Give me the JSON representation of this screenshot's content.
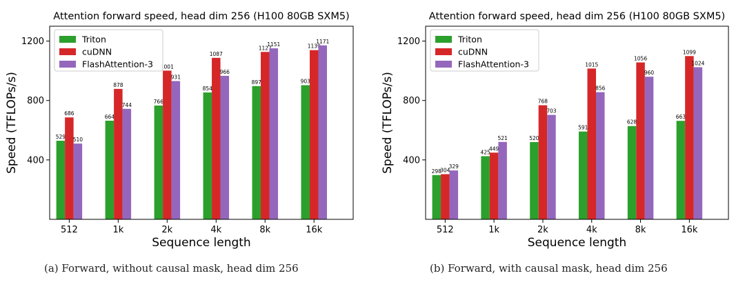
{
  "captions": [
    "(a) Forward, without causal mask, head dim 256",
    "(b) Forward, with causal mask, head dim 256"
  ],
  "colors": {
    "Triton": "#2ca02c",
    "cuDNN": "#d62728",
    "FlashAttention-3": "#9467bd"
  },
  "chart_data": [
    {
      "type": "bar",
      "title": "Attention forward speed, head dim 256 (H100 80GB SXM5)",
      "xlabel": "Sequence length",
      "ylabel": "Speed (TFLOPs/s)",
      "ylim": [
        0,
        1300
      ],
      "yticks": [
        400,
        800,
        1200
      ],
      "legend_position": "top-left",
      "grid": false,
      "categories": [
        "512",
        "1k",
        "2k",
        "4k",
        "8k",
        "16k"
      ],
      "series": [
        {
          "name": "Triton",
          "values": [
            529,
            664,
            766,
            854,
            897,
            903
          ]
        },
        {
          "name": "cuDNN",
          "values": [
            686,
            878,
            1001,
            1087,
            1127,
            1139
          ]
        },
        {
          "name": "FlashAttention-3",
          "values": [
            510,
            744,
            931,
            966,
            1151,
            1171
          ]
        }
      ]
    },
    {
      "type": "bar",
      "title": "Attention forward speed, head dim 256 (H100 80GB SXM5)",
      "xlabel": "Sequence length",
      "ylabel": "Speed (TFLOPs/s)",
      "ylim": [
        0,
        1300
      ],
      "yticks": [
        400,
        800,
        1200
      ],
      "legend_position": "top-left",
      "grid": false,
      "categories": [
        "512",
        "1k",
        "2k",
        "4k",
        "8k",
        "16k"
      ],
      "series": [
        {
          "name": "Triton",
          "values": [
            298,
            425,
            520,
            591,
            628,
            663
          ]
        },
        {
          "name": "cuDNN",
          "values": [
            304,
            449,
            768,
            1015,
            1056,
            1099
          ]
        },
        {
          "name": "FlashAttention-3",
          "values": [
            329,
            521,
            703,
            856,
            960,
            1024
          ]
        }
      ]
    }
  ]
}
